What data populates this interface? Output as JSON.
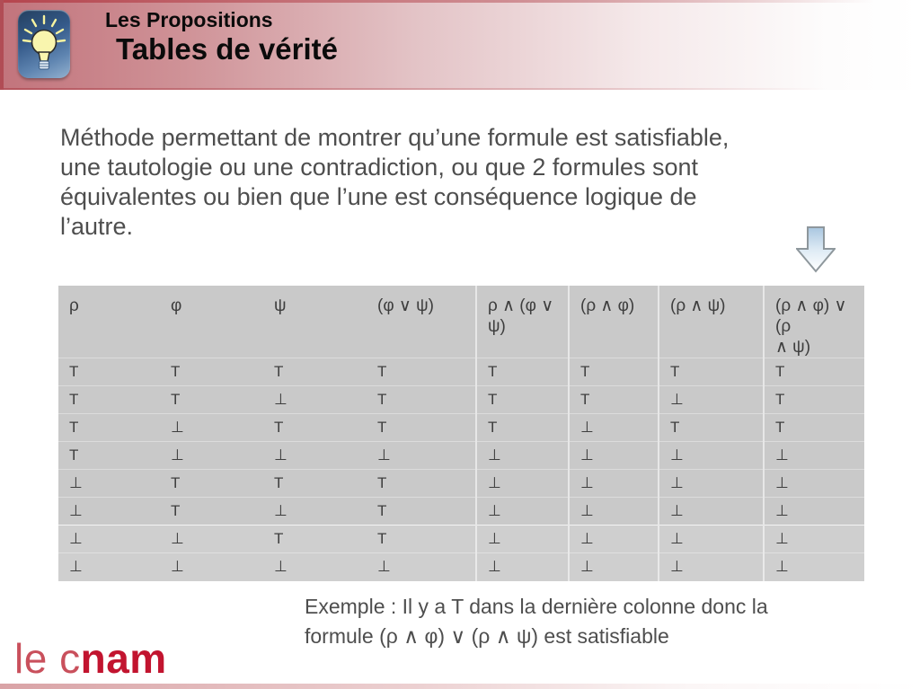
{
  "header": {
    "kicker": "Les Propositions",
    "title": "Tables de vérité",
    "icon": "lightbulb-icon"
  },
  "intro": {
    "lines": [
      "Méthode permettant de montrer qu’une formule est satisfiable,",
      "une tautologie ou une contradiction, ou que 2 formules sont",
      "équivalentes ou bien que l’une est conséquence logique de",
      "l’autre."
    ]
  },
  "table": {
    "headers": [
      "ρ",
      "φ",
      "ψ",
      "(φ ∨ ψ)",
      "ρ ∧ (φ ∨\nψ)",
      "(ρ ∧ φ)",
      "(ρ ∧ ψ)",
      "(ρ ∧ φ) ∨\n(ρ\n∧ ψ)"
    ],
    "rows": [
      [
        "T",
        "T",
        "T",
        "T",
        "T",
        "T",
        "T",
        "T"
      ],
      [
        "T",
        "T",
        "⊥",
        "T",
        "T",
        "T",
        "⊥",
        "T"
      ],
      [
        "T",
        "⊥",
        "T",
        "T",
        "T",
        "⊥",
        "T",
        "T"
      ],
      [
        "T",
        "⊥",
        "⊥",
        "⊥",
        "⊥",
        "⊥",
        "⊥",
        "⊥"
      ],
      [
        "⊥",
        "T",
        "T",
        "T",
        "⊥",
        "⊥",
        "⊥",
        "⊥"
      ],
      [
        "⊥",
        "T",
        "⊥",
        "T",
        "⊥",
        "⊥",
        "⊥",
        "⊥"
      ],
      [
        "⊥",
        "⊥",
        "T",
        "T",
        "⊥",
        "⊥",
        "⊥",
        "⊥"
      ],
      [
        "⊥",
        "⊥",
        "⊥",
        "⊥",
        "⊥",
        "⊥",
        "⊥",
        "⊥"
      ]
    ]
  },
  "example": {
    "lines": [
      "Exemple : Il y a T dans la dernière colonne donc la",
      "formule (ρ ∧ φ) ∨ (ρ ∧ ψ) est satisfiable"
    ]
  },
  "footer": {
    "logo_light": "le c",
    "logo_bold": "nam"
  },
  "colors": {
    "header_rose": "#c2747c",
    "header_edge_red": "#b14c55",
    "table_gray": "#c9c9c9",
    "arrow_blue": "#a9c6e0",
    "logo_red": "#c2142f",
    "body_text_gray": "#4e4e4e",
    "icon_blue": "#355a8a",
    "bulb_yellow": "#f9f5ae"
  }
}
